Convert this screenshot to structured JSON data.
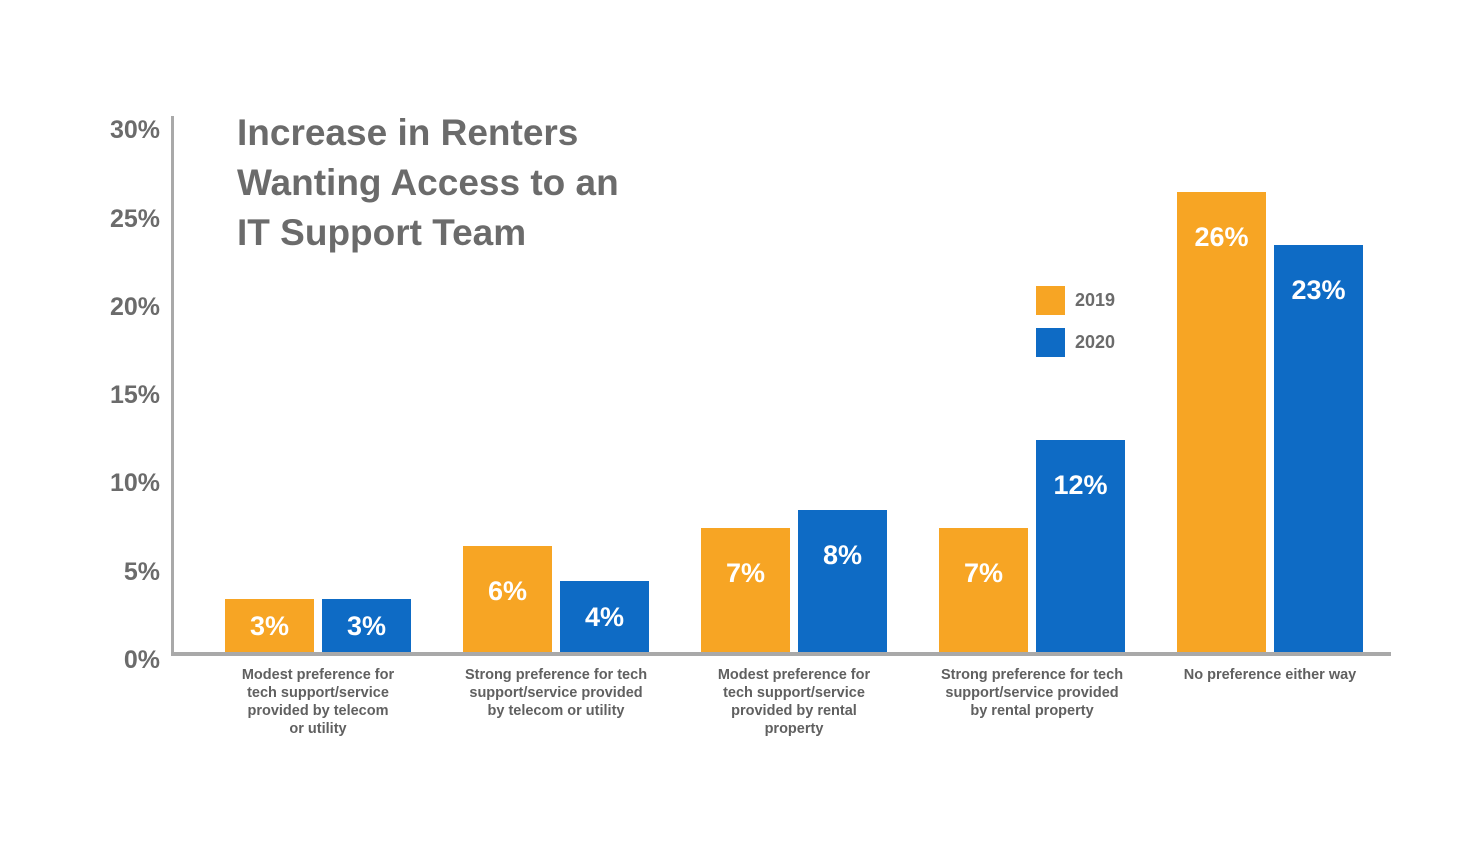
{
  "chart_data": {
    "type": "bar",
    "title": "Increase in Renters Wanting Access to an IT Support Team",
    "title_lines": [
      "Increase in Renters",
      "Wanting Access to an",
      "IT Support Team"
    ],
    "categories": [
      "Modest preference for tech support/service provided by telecom or utility",
      "Strong preference for tech support/service provided by telecom or utility",
      "Modest preference for tech support/service provided by rental property",
      "Strong preference for tech support/service provided by rental property",
      "No preference either way"
    ],
    "category_lines": [
      [
        "Modest preference for",
        "tech support/service",
        "provided by telecom",
        "or utility"
      ],
      [
        "Strong preference for tech",
        "support/service provided",
        "by telecom or utility"
      ],
      [
        "Modest preference for",
        "tech support/service",
        "provided by rental",
        "property"
      ],
      [
        "Strong preference for tech",
        "support/service provided",
        "by rental property"
      ],
      [
        "No preference either way"
      ]
    ],
    "series": [
      {
        "name": "2019",
        "color": "#F7A524",
        "values": [
          3,
          6,
          7,
          7,
          26
        ]
      },
      {
        "name": "2020",
        "color": "#0E6BC5",
        "values": [
          3,
          4,
          8,
          12,
          23
        ]
      }
    ],
    "value_suffix": "%",
    "xlabel": "",
    "ylabel": "",
    "ylim": [
      0,
      30
    ],
    "ytick_values": [
      30,
      25,
      20,
      15,
      10,
      5,
      0
    ],
    "ytick_labels": [
      "30%",
      "25%",
      "20%",
      "15%",
      "10%",
      "5%",
      "0%"
    ],
    "grid": false,
    "legend_position": "right-of-plot-upper"
  },
  "colors": {
    "background": "#FFFFFF",
    "title_text": "#6B6B6B",
    "tick_text": "#6B6B6B",
    "category_text": "#606060",
    "value_label_text": "#FFFFFF",
    "axis_line": "#A9A9A9",
    "legend_text": "#6B6B6B"
  }
}
